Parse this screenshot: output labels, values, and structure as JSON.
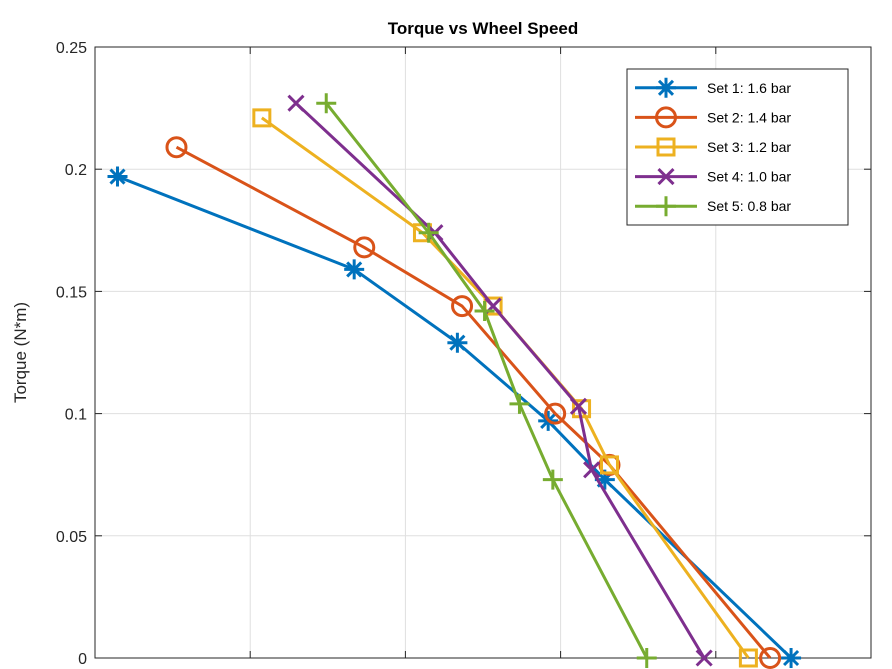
{
  "chart_data": {
    "type": "line",
    "title": "Torque vs Wheel Speed",
    "xlabel": "",
    "ylabel": "Torque (N*m)",
    "xlim": [
      0,
      1
    ],
    "ylim": [
      0,
      0.25
    ],
    "yticks": [
      0,
      0.05,
      0.1,
      0.15,
      0.2,
      0.25
    ],
    "ytick_labels": [
      "0",
      "0.05",
      "0.1",
      "0.15",
      "0.2",
      "0.25"
    ],
    "xticks": [
      0.2,
      0.4,
      0.6,
      0.8
    ],
    "grid": true,
    "legend_position": "top-right",
    "series": [
      {
        "name": "Set 1: 1.6 bar",
        "color": "#0072BD",
        "marker": "asterisk",
        "points": [
          [
            0.029,
            0.197
          ],
          [
            0.334,
            0.159
          ],
          [
            0.467,
            0.129
          ],
          [
            0.584,
            0.097
          ],
          [
            0.657,
            0.073
          ],
          [
            0.897,
            0.0
          ]
        ]
      },
      {
        "name": "Set 2: 1.4 bar",
        "color": "#D95319",
        "marker": "circle",
        "points": [
          [
            0.105,
            0.209
          ],
          [
            0.347,
            0.168
          ],
          [
            0.473,
            0.144
          ],
          [
            0.593,
            0.1
          ],
          [
            0.663,
            0.079
          ],
          [
            0.87,
            0.0
          ]
        ]
      },
      {
        "name": "Set 3: 1.2 bar",
        "color": "#EDB120",
        "marker": "square",
        "points": [
          [
            0.215,
            0.221
          ],
          [
            0.422,
            0.174
          ],
          [
            0.513,
            0.144
          ],
          [
            0.627,
            0.102
          ],
          [
            0.663,
            0.079
          ],
          [
            0.842,
            0.0
          ]
        ]
      },
      {
        "name": "Set 4: 1.0 bar",
        "color": "#7E2F8E",
        "marker": "x",
        "points": [
          [
            0.259,
            0.227
          ],
          [
            0.438,
            0.174
          ],
          [
            0.513,
            0.144
          ],
          [
            0.623,
            0.103
          ],
          [
            0.64,
            0.077
          ],
          [
            0.785,
            0.0
          ]
        ]
      },
      {
        "name": "Set 5: 0.8 bar",
        "color": "#77AC30",
        "marker": "plus",
        "points": [
          [
            0.298,
            0.227
          ],
          [
            0.43,
            0.174
          ],
          [
            0.502,
            0.142
          ],
          [
            0.547,
            0.104
          ],
          [
            0.59,
            0.073
          ],
          [
            0.711,
            0.0
          ]
        ]
      }
    ]
  }
}
